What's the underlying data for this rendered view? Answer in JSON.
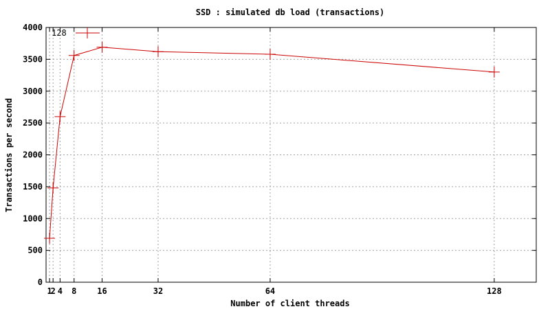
{
  "chart_data": {
    "type": "line",
    "title": "SSD : simulated db load (transactions)",
    "xlabel": "Number of client threads",
    "ylabel": "Transactions per second",
    "xlim": [
      0,
      140
    ],
    "ylim": [
      0,
      4000
    ],
    "xticks": [
      1,
      2,
      4,
      8,
      16,
      32,
      64,
      128
    ],
    "yticks": [
      0,
      500,
      1000,
      1500,
      2000,
      2500,
      3000,
      3500,
      4000
    ],
    "grid": true,
    "legend_position": "top-left",
    "series": [
      {
        "name": "128",
        "color": "#cc0000",
        "marker": "plus",
        "x": [
          1,
          2,
          4,
          8,
          16,
          32,
          64,
          128
        ],
        "y": [
          690,
          1480,
          2600,
          3560,
          3690,
          3620,
          3580,
          3300
        ]
      }
    ]
  }
}
